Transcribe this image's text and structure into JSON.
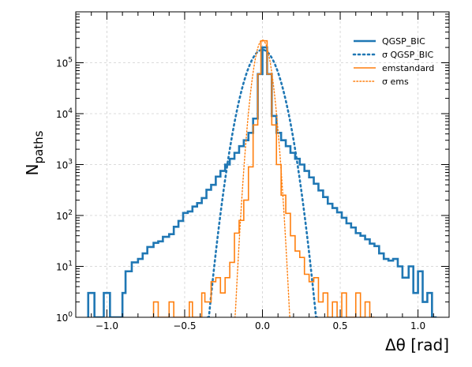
{
  "chart_data": {
    "type": "line",
    "title": "",
    "xlabel": "Δθ  [rad]",
    "ylabel_main": "N",
    "ylabel_sub": "paths",
    "xlim": [
      -1.2,
      1.2
    ],
    "ylim": [
      1,
      1000000
    ],
    "yscale": "log",
    "grid": true,
    "legend_position": "top-right",
    "xticks": [
      {
        "value": -1.0,
        "label": "−1.0"
      },
      {
        "value": -0.5,
        "label": "−0.5"
      },
      {
        "value": 0.0,
        "label": "0.0"
      },
      {
        "value": 0.5,
        "label": "0.5"
      },
      {
        "value": 1.0,
        "label": "1.0"
      }
    ],
    "yticks": [
      {
        "value": 1,
        "base": "10",
        "exp": "0"
      },
      {
        "value": 10,
        "base": "10",
        "exp": "1"
      },
      {
        "value": 100,
        "base": "10",
        "exp": "2"
      },
      {
        "value": 1000,
        "base": "10",
        "exp": "3"
      },
      {
        "value": 10000,
        "base": "10",
        "exp": "4"
      },
      {
        "value": 100000,
        "base": "10",
        "exp": "5"
      }
    ],
    "series": [
      {
        "name": "QGSP_BIC",
        "style": "step",
        "color": "#1f77b4",
        "points": [
          [
            -1.12,
            3
          ],
          [
            -1.08,
            1
          ],
          [
            -1.02,
            3
          ],
          [
            -0.98,
            1
          ],
          [
            -0.9,
            3
          ],
          [
            -0.88,
            8
          ],
          [
            -0.84,
            12
          ],
          [
            -0.8,
            14
          ],
          [
            -0.77,
            18
          ],
          [
            -0.74,
            24
          ],
          [
            -0.7,
            29
          ],
          [
            -0.67,
            31
          ],
          [
            -0.64,
            38
          ],
          [
            -0.6,
            43
          ],
          [
            -0.57,
            60
          ],
          [
            -0.54,
            78
          ],
          [
            -0.51,
            112
          ],
          [
            -0.48,
            120
          ],
          [
            -0.45,
            150
          ],
          [
            -0.42,
            175
          ],
          [
            -0.39,
            220
          ],
          [
            -0.36,
            320
          ],
          [
            -0.33,
            400
          ],
          [
            -0.3,
            580
          ],
          [
            -0.27,
            750
          ],
          [
            -0.24,
            1000
          ],
          [
            -0.21,
            1300
          ],
          [
            -0.18,
            1700
          ],
          [
            -0.15,
            2300
          ],
          [
            -0.12,
            3000
          ],
          [
            -0.09,
            4200
          ],
          [
            -0.06,
            8000
          ],
          [
            -0.03,
            60000
          ],
          [
            0.0,
            200000
          ],
          [
            0.03,
            60000
          ],
          [
            0.06,
            9000
          ],
          [
            0.09,
            4200
          ],
          [
            0.12,
            3000
          ],
          [
            0.15,
            2300
          ],
          [
            0.18,
            1700
          ],
          [
            0.21,
            1300
          ],
          [
            0.24,
            1000
          ],
          [
            0.27,
            750
          ],
          [
            0.3,
            560
          ],
          [
            0.33,
            420
          ],
          [
            0.36,
            310
          ],
          [
            0.39,
            230
          ],
          [
            0.42,
            170
          ],
          [
            0.45,
            140
          ],
          [
            0.48,
            115
          ],
          [
            0.51,
            90
          ],
          [
            0.54,
            70
          ],
          [
            0.57,
            58
          ],
          [
            0.6,
            45
          ],
          [
            0.63,
            40
          ],
          [
            0.66,
            34
          ],
          [
            0.69,
            28
          ],
          [
            0.72,
            25
          ],
          [
            0.75,
            18
          ],
          [
            0.78,
            14
          ],
          [
            0.81,
            13
          ],
          [
            0.84,
            14
          ],
          [
            0.87,
            10
          ],
          [
            0.9,
            6
          ],
          [
            0.94,
            10
          ],
          [
            0.97,
            3
          ],
          [
            1.0,
            8
          ],
          [
            1.03,
            2
          ],
          [
            1.06,
            3
          ],
          [
            1.09,
            1
          ]
        ]
      },
      {
        "name": "σ QGSP_BIC",
        "style": "gaussian",
        "color": "#1f77b4",
        "amplitude": 180000,
        "sigma": 0.07
      },
      {
        "name": "emstandard",
        "style": "step",
        "color": "#ff7f0e",
        "points": [
          [
            -0.72,
            1
          ],
          [
            -0.7,
            2
          ],
          [
            -0.67,
            1
          ],
          [
            -0.6,
            2
          ],
          [
            -0.57,
            1
          ],
          [
            -0.47,
            2
          ],
          [
            -0.45,
            1
          ],
          [
            -0.42,
            1
          ],
          [
            -0.39,
            3
          ],
          [
            -0.37,
            2
          ],
          [
            -0.33,
            5
          ],
          [
            -0.3,
            6
          ],
          [
            -0.27,
            3
          ],
          [
            -0.24,
            6
          ],
          [
            -0.21,
            12
          ],
          [
            -0.18,
            45
          ],
          [
            -0.15,
            80
          ],
          [
            -0.12,
            200
          ],
          [
            -0.09,
            900
          ],
          [
            -0.06,
            6000
          ],
          [
            -0.03,
            60000
          ],
          [
            -0.01,
            270000
          ],
          [
            0.03,
            60000
          ],
          [
            0.06,
            6000
          ],
          [
            0.09,
            1000
          ],
          [
            0.12,
            250
          ],
          [
            0.15,
            110
          ],
          [
            0.18,
            40
          ],
          [
            0.21,
            20
          ],
          [
            0.24,
            15
          ],
          [
            0.27,
            7
          ],
          [
            0.3,
            5
          ],
          [
            0.33,
            6
          ],
          [
            0.36,
            2
          ],
          [
            0.39,
            3
          ],
          [
            0.42,
            1
          ],
          [
            0.45,
            2
          ],
          [
            0.48,
            1
          ],
          [
            0.51,
            3
          ],
          [
            0.54,
            1
          ],
          [
            0.57,
            1
          ],
          [
            0.6,
            3
          ],
          [
            0.63,
            1
          ],
          [
            0.66,
            2
          ],
          [
            0.69,
            1
          ]
        ]
      },
      {
        "name": "σ ems",
        "style": "gaussian",
        "color": "#ff7f0e",
        "amplitude": 280000,
        "sigma": 0.035
      }
    ]
  }
}
